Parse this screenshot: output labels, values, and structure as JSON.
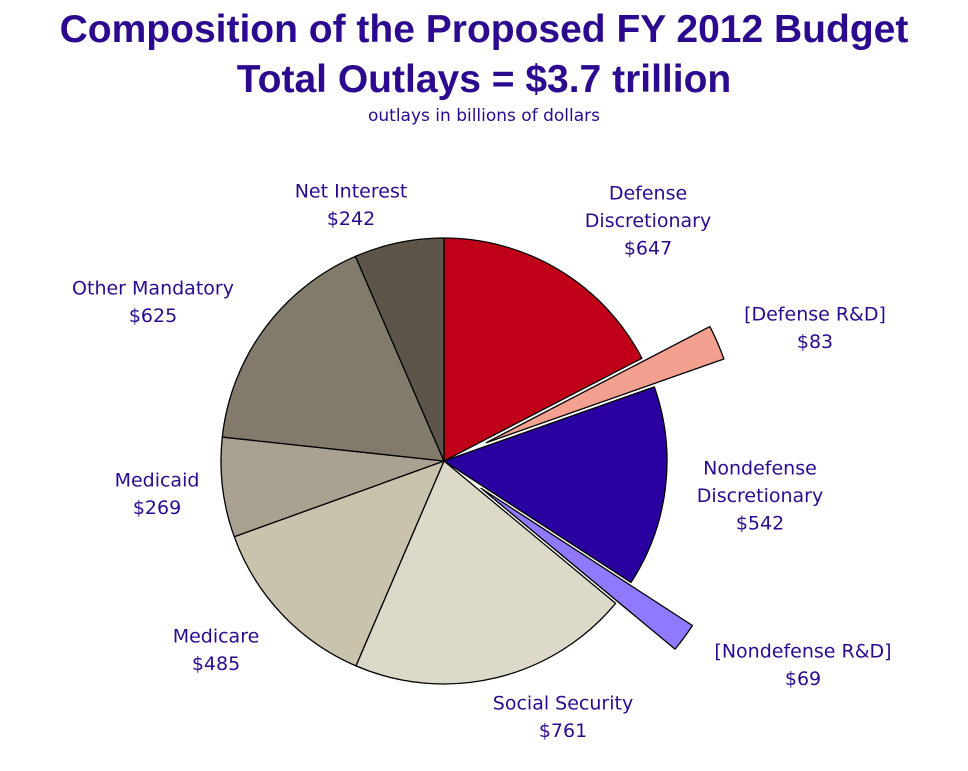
{
  "title": "Composition of the Proposed FY 2012 Budget",
  "subtitle": "Total Outlays = $3.7 trillion",
  "note": "outlays in billions of dollars",
  "chart_data": {
    "type": "pie",
    "title": "Composition of the Proposed FY 2012 Budget",
    "subtitle": "Total Outlays = $3.7 trillion",
    "unit": "outlays in billions of dollars",
    "slices": [
      {
        "label": "Defense Discretionary",
        "value": 647,
        "value_label": "$647",
        "color": "#c00018"
      },
      {
        "label": "[Defense R&D]",
        "value": 83,
        "value_label": "$83",
        "color": "#f4a090",
        "exploded": true
      },
      {
        "label": "Nondefense Discretionary",
        "value": 542,
        "value_label": "$542",
        "color": "#2b00a0"
      },
      {
        "label": "[Nondefense R&D]",
        "value": 69,
        "value_label": "$69",
        "color": "#9079ff",
        "exploded": true
      },
      {
        "label": "Social Security",
        "value": 761,
        "value_label": "$761",
        "color": "#dcd9c8"
      },
      {
        "label": "Medicare",
        "value": 485,
        "value_label": "$485",
        "color": "#c9c2ad"
      },
      {
        "label": "Medicaid",
        "value": 269,
        "value_label": "$269",
        "color": "#aaa290"
      },
      {
        "label": "Other Mandatory",
        "value": 625,
        "value_label": "$625",
        "color": "#827b6c"
      },
      {
        "label": "Net Interest",
        "value": 242,
        "value_label": "$242",
        "color": "#5d554a"
      }
    ]
  }
}
